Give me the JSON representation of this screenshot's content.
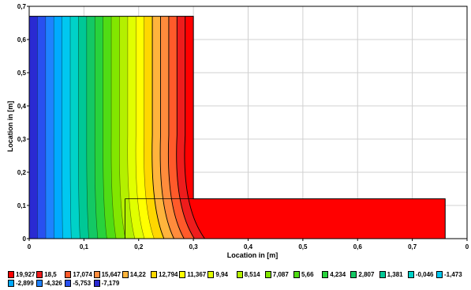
{
  "chart_data": {
    "type": "heatmap",
    "title": "",
    "xlabel": "Location in [m]",
    "ylabel": "Location in [m]",
    "xlim": [
      0,
      0.8
    ],
    "ylim": [
      0,
      0.7
    ],
    "x_ticks": [
      "0",
      "0,1",
      "0,2",
      "0,3",
      "0,4",
      "0,5",
      "0,6",
      "0,7",
      "0"
    ],
    "y_ticks": [
      "0",
      "0,1",
      "0,2",
      "0,3",
      "0,4",
      "0,5",
      "0,6",
      "0,7"
    ],
    "grid": true,
    "legend_position": "bottom",
    "geometry": {
      "wall": {
        "x": [
          0,
          0.3
        ],
        "y": [
          0,
          0.67
        ]
      },
      "slab": {
        "x": [
          0.3,
          0.76
        ],
        "y": [
          0,
          0.12
        ]
      }
    },
    "legend": [
      {
        "label": "19,927",
        "color": "#ff0000"
      },
      {
        "label": "18,5",
        "color": "#ee1c1c"
      },
      {
        "label": "17,074",
        "color": "#ff5a2a"
      },
      {
        "label": "15,647",
        "color": "#ff8c3c"
      },
      {
        "label": "14,22",
        "color": "#ffb43c"
      },
      {
        "label": "12,794",
        "color": "#ffd700"
      },
      {
        "label": "11,367",
        "color": "#ffff00"
      },
      {
        "label": "9,94",
        "color": "#e1ff00"
      },
      {
        "label": "8,514",
        "color": "#b4f000"
      },
      {
        "label": "7,087",
        "color": "#82e600"
      },
      {
        "label": "5,66",
        "color": "#50dc14"
      },
      {
        "label": "4,234",
        "color": "#28d23c"
      },
      {
        "label": "2,807",
        "color": "#14c864"
      },
      {
        "label": "1,381",
        "color": "#00c896"
      },
      {
        "label": "-0,046",
        "color": "#00d2c8"
      },
      {
        "label": "-1,473",
        "color": "#00c8f0"
      },
      {
        "label": "-2,899",
        "color": "#00aaff"
      },
      {
        "label": "-4,326",
        "color": "#1e82ff"
      },
      {
        "label": "-5,753",
        "color": "#2850f0"
      },
      {
        "label": "-7,179",
        "color": "#2a2ad2"
      }
    ]
  }
}
